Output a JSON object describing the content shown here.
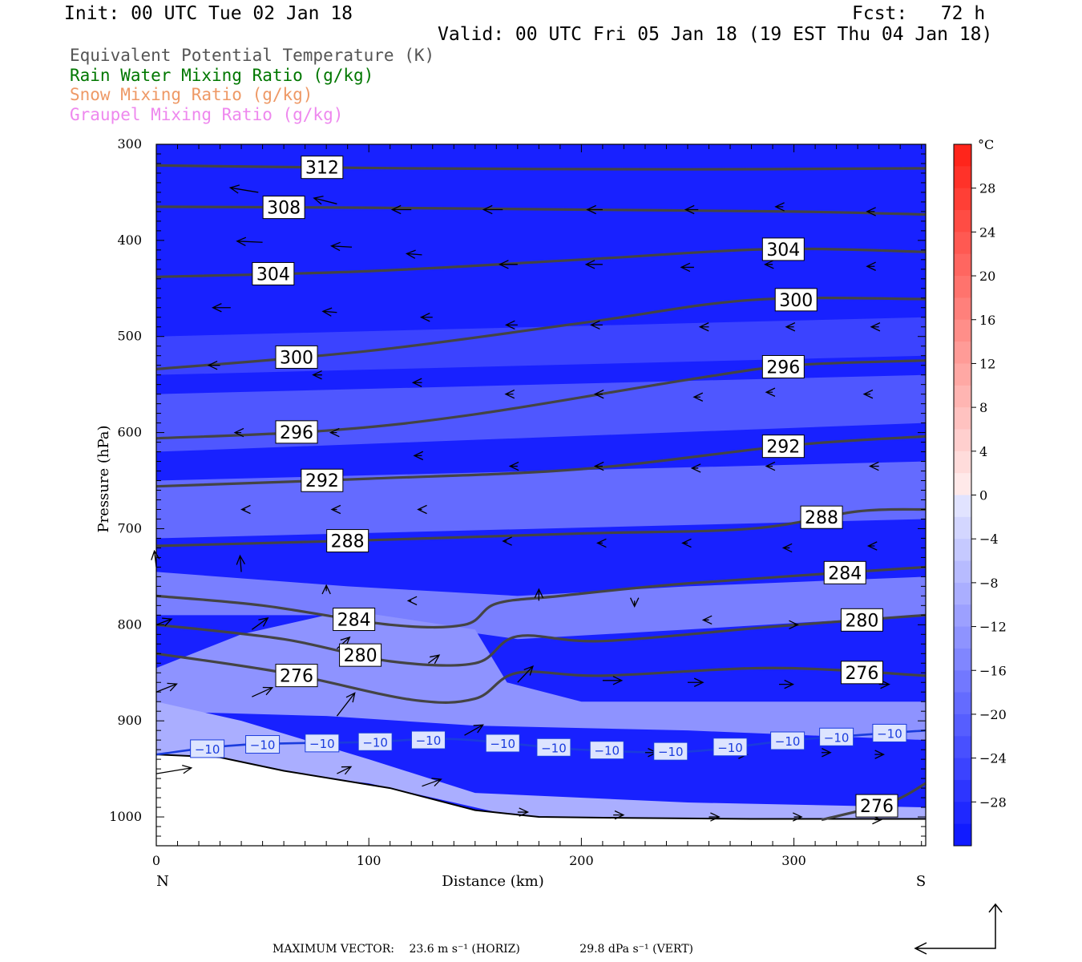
{
  "header": {
    "init": "Init: 00 UTC Tue 02 Jan 18",
    "fcst": "Fcst:   72 h",
    "valid": "Valid: 00 UTC Fri 05 Jan 18 (19 EST Thu 04 Jan 18)"
  },
  "legend": [
    {
      "label": "Equivalent Potential Temperature (K)",
      "color": "#555555"
    },
    {
      "label": "Rain Water Mixing Ratio (g/kg)",
      "color": "#007700"
    },
    {
      "label": "Snow Mixing Ratio (g/kg)",
      "color": "#ee9966"
    },
    {
      "label": "Graupel Mixing Ratio (g/kg)",
      "color": "#ee88ee"
    }
  ],
  "footer": {
    "prefix": "MAXIMUM VECTOR:",
    "horiz": "23.6 m s⁻¹ (HORIZ)",
    "vert": "29.8 dPa s⁻¹ (VERT)"
  },
  "chart_data": {
    "type": "contour",
    "xlabel": "Distance (km)",
    "ylabel": "Pressure (hPa)",
    "x_end_labels": {
      "left": "N",
      "right": "S"
    },
    "xlim": [
      0,
      362
    ],
    "ylim": [
      300,
      1030
    ],
    "x_ticks": [
      0,
      100,
      200,
      300
    ],
    "y_ticks": [
      300,
      400,
      500,
      600,
      700,
      800,
      900,
      1000
    ],
    "colorbar": {
      "unit": "°C",
      "labels": [
        28,
        24,
        20,
        16,
        12,
        8,
        4,
        0,
        -4,
        -8,
        -12,
        -16,
        -20,
        -24,
        -28
      ],
      "range": [
        -32,
        32
      ]
    },
    "temperature_zones": [
      {
        "temp": -9,
        "points": [
          [
            0,
            940
          ],
          [
            100,
            965
          ],
          [
            170,
            1000
          ],
          [
            362,
            1003
          ],
          [
            362,
            990
          ],
          [
            250,
            985
          ],
          [
            150,
            975
          ],
          [
            100,
            940
          ],
          [
            40,
            900
          ],
          [
            0,
            880
          ]
        ]
      },
      {
        "temp": -13,
        "points": [
          [
            0,
            845
          ],
          [
            40,
            810
          ],
          [
            90,
            785
          ],
          [
            150,
            805
          ],
          [
            165,
            860
          ],
          [
            200,
            880
          ],
          [
            362,
            880
          ],
          [
            362,
            920
          ],
          [
            250,
            910
          ],
          [
            150,
            905
          ],
          [
            80,
            895
          ],
          [
            0,
            890
          ]
        ]
      },
      {
        "temp": -16,
        "points": [
          [
            0,
            745
          ],
          [
            90,
            760
          ],
          [
            170,
            770
          ],
          [
            250,
            760
          ],
          [
            362,
            750
          ],
          [
            362,
            790
          ],
          [
            250,
            805
          ],
          [
            170,
            815
          ],
          [
            90,
            790
          ],
          [
            0,
            790
          ]
        ]
      },
      {
        "temp": -19,
        "points": [
          [
            0,
            650
          ],
          [
            362,
            630
          ],
          [
            362,
            690
          ],
          [
            0,
            710
          ]
        ]
      },
      {
        "temp": -22,
        "points": [
          [
            0,
            560
          ],
          [
            362,
            540
          ],
          [
            362,
            590
          ],
          [
            0,
            620
          ]
        ]
      },
      {
        "temp": -25,
        "points": [
          [
            0,
            500
          ],
          [
            362,
            480
          ],
          [
            362,
            520
          ],
          [
            0,
            540
          ]
        ]
      }
    ],
    "theta_e_contours": [
      {
        "value": 312,
        "points": [
          [
            0,
            322
          ],
          [
            120,
            325
          ],
          [
            250,
            326
          ],
          [
            362,
            325
          ]
        ],
        "label_x": 78
      },
      {
        "value": 308,
        "points": [
          [
            0,
            365
          ],
          [
            100,
            366
          ],
          [
            200,
            368
          ],
          [
            300,
            370
          ],
          [
            362,
            373
          ]
        ],
        "label_x": 60
      },
      {
        "value": 304,
        "points": [
          [
            0,
            438
          ],
          [
            100,
            432
          ],
          [
            200,
            420
          ],
          [
            290,
            409
          ],
          [
            362,
            412
          ]
        ],
        "label_x": [
          55,
          295
        ]
      },
      {
        "value": 300,
        "points": [
          [
            0,
            534
          ],
          [
            100,
            515
          ],
          [
            200,
            486
          ],
          [
            280,
            462
          ],
          [
            362,
            461
          ]
        ],
        "label_x": [
          66,
          301
        ]
      },
      {
        "value": 296,
        "points": [
          [
            0,
            606
          ],
          [
            80,
            598
          ],
          [
            150,
            581
          ],
          [
            250,
            545
          ],
          [
            300,
            530
          ],
          [
            362,
            525
          ]
        ],
        "label_x": [
          66,
          295
        ]
      },
      {
        "value": 292,
        "points": [
          [
            0,
            656
          ],
          [
            100,
            648
          ],
          [
            200,
            638
          ],
          [
            300,
            613
          ],
          [
            362,
            604
          ]
        ],
        "label_x": 78
      },
      {
        "value": 292,
        "points": [],
        "label_x": 295
      },
      {
        "value": 288,
        "points": [
          [
            0,
            718
          ],
          [
            100,
            712
          ],
          [
            200,
            705
          ],
          [
            280,
            700
          ],
          [
            330,
            682
          ],
          [
            362,
            680
          ]
        ],
        "label_x": [
          90,
          313
        ]
      },
      {
        "value": 284,
        "points": [
          [
            0,
            770
          ],
          [
            50,
            780
          ],
          [
            110,
            800
          ],
          [
            145,
            800
          ],
          [
            160,
            778
          ],
          [
            190,
            770
          ],
          [
            250,
            757
          ],
          [
            362,
            740
          ]
        ],
        "label_x": [
          93,
          324
        ]
      },
      {
        "value": 280,
        "points": [
          [
            0,
            800
          ],
          [
            60,
            815
          ],
          [
            110,
            838
          ],
          [
            150,
            840
          ],
          [
            170,
            812
          ],
          [
            210,
            817
          ],
          [
            290,
            802
          ],
          [
            362,
            790
          ]
        ],
        "label_x": [
          96,
          332
        ]
      },
      {
        "value": 276,
        "points": [
          [
            0,
            830
          ],
          [
            60,
            850
          ],
          [
            120,
            878
          ],
          [
            150,
            877
          ],
          [
            170,
            850
          ],
          [
            210,
            853
          ],
          [
            290,
            845
          ],
          [
            362,
            853
          ]
        ],
        "label_x": [
          66,
          332
        ]
      },
      {
        "value": 276,
        "points": [
          [
            313,
            1003
          ],
          [
            345,
            985
          ],
          [
            362,
            965
          ]
        ],
        "label_x": 339
      }
    ],
    "isotherm": {
      "value": -10,
      "color": "#1a3cdd",
      "points": [
        [
          0,
          935
        ],
        [
          40,
          925
        ],
        [
          100,
          922
        ],
        [
          140,
          919
        ],
        [
          200,
          930
        ],
        [
          250,
          932
        ],
        [
          300,
          920
        ],
        [
          362,
          910
        ]
      ]
    },
    "wind_vectors": [
      [
        48,
        350,
        -44,
        -4
      ],
      [
        85,
        362,
        -36,
        -5
      ],
      [
        120,
        368,
        -30,
        0
      ],
      [
        163,
        368,
        -30,
        0
      ],
      [
        210,
        368,
        -24,
        0
      ],
      [
        255,
        368,
        -20,
        0
      ],
      [
        295,
        365,
        -12,
        0
      ],
      [
        338,
        370,
        -12,
        0
      ],
      [
        50,
        402,
        -40,
        -1
      ],
      [
        92,
        407,
        -32,
        -1
      ],
      [
        125,
        415,
        -24,
        -1
      ],
      [
        170,
        425,
        -28,
        0
      ],
      [
        210,
        425,
        -26,
        0
      ],
      [
        253,
        428,
        -20,
        0
      ],
      [
        290,
        425,
        -12,
        0
      ],
      [
        338,
        427,
        -12,
        0
      ],
      [
        35,
        470,
        -28,
        0
      ],
      [
        85,
        475,
        -22,
        -1
      ],
      [
        130,
        480,
        -18,
        0
      ],
      [
        170,
        488,
        -18,
        0
      ],
      [
        210,
        488,
        -18,
        0
      ],
      [
        260,
        490,
        -14,
        0
      ],
      [
        300,
        490,
        -12,
        0
      ],
      [
        340,
        490,
        -12,
        0
      ],
      [
        30,
        530,
        -18,
        0
      ],
      [
        78,
        540,
        -14,
        0
      ],
      [
        125,
        548,
        -14,
        0
      ],
      [
        168,
        560,
        -12,
        0
      ],
      [
        210,
        560,
        -12,
        0
      ],
      [
        256,
        563,
        -10,
        0
      ],
      [
        290,
        558,
        -10,
        0
      ],
      [
        336,
        560,
        -10,
        0
      ],
      [
        40,
        600,
        -10,
        0
      ],
      [
        85,
        600,
        -10,
        0
      ],
      [
        125,
        624,
        -12,
        0
      ],
      [
        170,
        635,
        -12,
        0
      ],
      [
        210,
        635,
        -12,
        0
      ],
      [
        255,
        637,
        -10,
        0
      ],
      [
        290,
        635,
        -10,
        0
      ],
      [
        340,
        635,
        -14,
        0
      ],
      [
        42,
        680,
        -6,
        0
      ],
      [
        85,
        680,
        -8,
        0
      ],
      [
        125,
        680,
        -6,
        0
      ],
      [
        165,
        713,
        -6,
        0
      ],
      [
        210,
        715,
        -8,
        0
      ],
      [
        250,
        715,
        -8,
        0
      ],
      [
        298,
        720,
        -10,
        0
      ],
      [
        338,
        718,
        -10,
        0
      ],
      [
        0,
        740,
        -3,
        -14
      ],
      [
        40,
        745,
        -2,
        -14
      ],
      [
        80,
        765,
        0,
        -5
      ],
      [
        120,
        775,
        -5,
        0
      ],
      [
        180,
        775,
        0,
        -10
      ],
      [
        225,
        775,
        0,
        5
      ],
      [
        260,
        795,
        -9,
        0
      ],
      [
        300,
        800,
        6,
        0
      ],
      [
        338,
        800,
        -2,
        0
      ],
      [
        0,
        800,
        24,
        -5
      ],
      [
        45,
        805,
        25,
        -10
      ],
      [
        85,
        825,
        20,
        -10
      ],
      [
        128,
        840,
        17,
        -7
      ],
      [
        170,
        860,
        24,
        -14
      ],
      [
        210,
        858,
        30,
        0
      ],
      [
        250,
        860,
        24,
        0
      ],
      [
        293,
        862,
        22,
        0
      ],
      [
        340,
        862,
        16,
        0
      ],
      [
        0,
        870,
        32,
        -7
      ],
      [
        45,
        875,
        32,
        -8
      ],
      [
        85,
        895,
        28,
        -20
      ],
      [
        145,
        915,
        29,
        -9
      ],
      [
        180,
        925,
        16,
        0
      ],
      [
        230,
        933,
        18,
        0
      ],
      [
        275,
        935,
        10,
        0
      ],
      [
        313,
        933,
        14,
        0
      ],
      [
        338,
        935,
        14,
        0
      ],
      [
        0,
        955,
        55,
        -5
      ],
      [
        85,
        955,
        22,
        -6
      ],
      [
        125,
        968,
        30,
        -6
      ],
      [
        170,
        995,
        16,
        0
      ],
      [
        215,
        998,
        16,
        0
      ],
      [
        260,
        1000,
        16,
        0
      ],
      [
        300,
        1000,
        12,
        0
      ],
      [
        338,
        1003,
        10,
        0
      ]
    ],
    "terrain": [
      [
        0,
        935
      ],
      [
        30,
        938
      ],
      [
        60,
        952
      ],
      [
        110,
        970
      ],
      [
        150,
        993
      ],
      [
        180,
        1000
      ],
      [
        220,
        1001
      ],
      [
        280,
        1002
      ],
      [
        362,
        1002
      ]
    ]
  }
}
